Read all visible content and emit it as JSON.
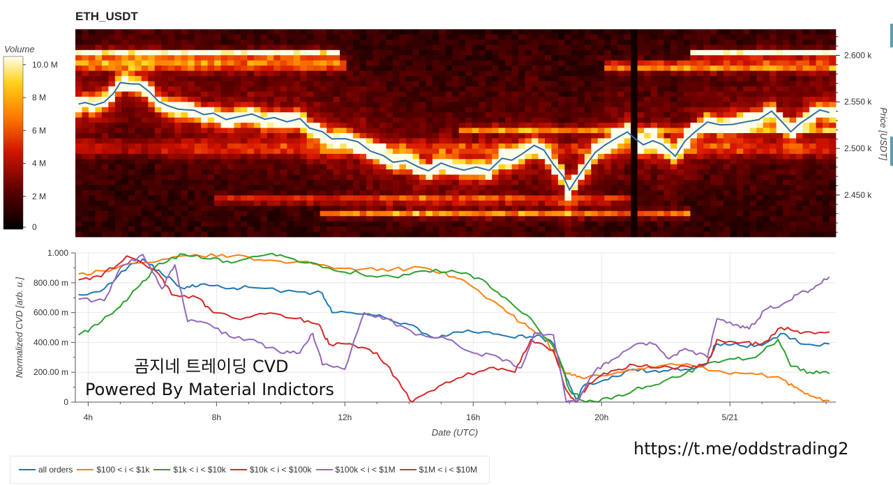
{
  "title": "ETH_USDT",
  "heatmap": {
    "colorbar_label": "Volume",
    "colorbar_ticks": [
      {
        "label": "10.0 M",
        "value": 10000000
      },
      {
        "label": "8 M",
        "value": 8000000
      },
      {
        "label": "6 M",
        "value": 6000000
      },
      {
        "label": "4 M",
        "value": 4000000
      },
      {
        "label": "2 M",
        "value": 2000000
      },
      {
        "label": "0",
        "value": 0
      }
    ],
    "ylabel": "Price [USDT]",
    "price_ticks": [
      "2.600 k",
      "2.550 k",
      "2.500 k",
      "2.450 k"
    ],
    "price_tick_values": [
      2600,
      2550,
      2500,
      2450
    ],
    "price_range": [
      2405,
      2628
    ],
    "price_line": [
      [
        3.7,
        2547
      ],
      [
        3.9,
        2549
      ],
      [
        4.2,
        2546
      ],
      [
        4.5,
        2551
      ],
      [
        4.8,
        2560
      ],
      [
        5.0,
        2572
      ],
      [
        5.3,
        2570
      ],
      [
        5.6,
        2568
      ],
      [
        5.9,
        2562
      ],
      [
        6.2,
        2549
      ],
      [
        6.5,
        2545
      ],
      [
        6.8,
        2543
      ],
      [
        7.0,
        2542
      ],
      [
        7.3,
        2540
      ],
      [
        7.6,
        2535
      ],
      [
        7.9,
        2537
      ],
      [
        8.3,
        2531
      ],
      [
        8.7,
        2534
      ],
      [
        9.1,
        2536
      ],
      [
        9.5,
        2530
      ],
      [
        9.8,
        2532
      ],
      [
        10.2,
        2529
      ],
      [
        10.6,
        2533
      ],
      [
        10.9,
        2521
      ],
      [
        11.3,
        2517
      ],
      [
        11.6,
        2509
      ],
      [
        12.0,
        2512
      ],
      [
        12.4,
        2506
      ],
      [
        12.8,
        2498
      ],
      [
        13.2,
        2492
      ],
      [
        13.5,
        2486
      ],
      [
        13.9,
        2488
      ],
      [
        14.3,
        2480
      ],
      [
        14.6,
        2475
      ],
      [
        15.0,
        2484
      ],
      [
        15.3,
        2481
      ],
      [
        15.7,
        2478
      ],
      [
        16.1,
        2479
      ],
      [
        16.5,
        2477
      ],
      [
        16.9,
        2489
      ],
      [
        17.2,
        2487
      ],
      [
        17.5,
        2494
      ],
      [
        17.9,
        2502
      ],
      [
        18.2,
        2497
      ],
      [
        18.5,
        2482
      ],
      [
        18.8,
        2470
      ],
      [
        19.0,
        2455
      ],
      [
        19.2,
        2466
      ],
      [
        19.5,
        2481
      ],
      [
        19.8,
        2496
      ],
      [
        20.1,
        2503
      ],
      [
        20.4,
        2510
      ],
      [
        20.8,
        2518
      ],
      [
        21.0,
        2512
      ],
      [
        21.3,
        2505
      ],
      [
        21.6,
        2509
      ],
      [
        21.9,
        2503
      ],
      [
        22.3,
        2492
      ],
      [
        22.6,
        2508
      ],
      [
        22.9,
        2519
      ],
      [
        23.3,
        2528
      ],
      [
        23.7,
        2524
      ],
      [
        24.1,
        2527
      ],
      [
        24.5,
        2530
      ],
      [
        24.9,
        2532
      ],
      [
        25.3,
        2541
      ],
      [
        25.6,
        2529
      ],
      [
        25.9,
        2519
      ],
      [
        26.2,
        2528
      ],
      [
        26.5,
        2535
      ],
      [
        26.8,
        2540
      ],
      [
        27.1,
        2538
      ]
    ]
  },
  "chart_data": {
    "type": "line",
    "xlabel": "Date (UTC)",
    "ylabel": "Normalized CVD [arb. u.]",
    "x_ticks": [
      "4h",
      "8h",
      "12h",
      "16h",
      "20h",
      "5/21"
    ],
    "x_tick_hours": [
      4,
      8,
      12,
      16,
      20,
      24
    ],
    "xlim": [
      3.6,
      27.3
    ],
    "ylim": [
      0,
      1000
    ],
    "y_ticks": [
      {
        "label": "0",
        "value": 0
      },
      {
        "label": "200.00 m",
        "value": 200
      },
      {
        "label": "400.00 m",
        "value": 400
      },
      {
        "label": "600.00 m",
        "value": 600
      },
      {
        "label": "800.00 m",
        "value": 800
      },
      {
        "label": "1.000",
        "value": 1000
      }
    ],
    "grid": true,
    "legend_position": "bottom-left",
    "series": [
      {
        "name": "all orders",
        "color": "#1f77b4",
        "points": [
          [
            3.7,
            720
          ],
          [
            4.5,
            760
          ],
          [
            5.3,
            920
          ],
          [
            5.7,
            960
          ],
          [
            6.3,
            860
          ],
          [
            7.0,
            760
          ],
          [
            7.5,
            790
          ],
          [
            8.3,
            760
          ],
          [
            9.0,
            770
          ],
          [
            10.5,
            740
          ],
          [
            11.3,
            730
          ],
          [
            11.6,
            600
          ],
          [
            12.5,
            590
          ],
          [
            13.2,
            570
          ],
          [
            14.0,
            520
          ],
          [
            14.8,
            430
          ],
          [
            15.5,
            470
          ],
          [
            16.5,
            470
          ],
          [
            17.3,
            430
          ],
          [
            18.0,
            450
          ],
          [
            18.5,
            390
          ],
          [
            18.9,
            160
          ],
          [
            19.2,
            20
          ],
          [
            19.5,
            120
          ],
          [
            20.2,
            150
          ],
          [
            21.0,
            220
          ],
          [
            21.8,
            200
          ],
          [
            22.6,
            220
          ],
          [
            23.3,
            260
          ],
          [
            23.6,
            390
          ],
          [
            24.3,
            380
          ],
          [
            25.0,
            380
          ],
          [
            25.7,
            460
          ],
          [
            26.2,
            390
          ],
          [
            27.1,
            390
          ]
        ]
      },
      {
        "name": "$100 < i < $1k",
        "color": "#ff7f0e",
        "points": [
          [
            3.7,
            860
          ],
          [
            4.5,
            880
          ],
          [
            5.3,
            930
          ],
          [
            6.5,
            960
          ],
          [
            7.5,
            980
          ],
          [
            8.5,
            980
          ],
          [
            9.5,
            950
          ],
          [
            10.5,
            940
          ],
          [
            11.5,
            910
          ],
          [
            12.5,
            890
          ],
          [
            13.5,
            890
          ],
          [
            14.5,
            900
          ],
          [
            15.4,
            840
          ],
          [
            16.0,
            770
          ],
          [
            16.8,
            650
          ],
          [
            17.5,
            530
          ],
          [
            18.2,
            440
          ],
          [
            18.8,
            220
          ],
          [
            19.1,
            180
          ],
          [
            19.5,
            160
          ],
          [
            20.5,
            200
          ],
          [
            21.5,
            240
          ],
          [
            22.5,
            250
          ],
          [
            23.5,
            210
          ],
          [
            24.5,
            190
          ],
          [
            25.5,
            170
          ],
          [
            26.0,
            100
          ],
          [
            26.5,
            40
          ],
          [
            27.1,
            10
          ]
        ]
      },
      {
        "name": "$1k < i < $10k",
        "color": "#2ca02c",
        "points": [
          [
            3.7,
            450
          ],
          [
            4.3,
            520
          ],
          [
            5.0,
            640
          ],
          [
            5.6,
            780
          ],
          [
            6.2,
            930
          ],
          [
            7.0,
            990
          ],
          [
            7.8,
            960
          ],
          [
            8.6,
            940
          ],
          [
            9.6,
            990
          ],
          [
            10.4,
            960
          ],
          [
            11.5,
            900
          ],
          [
            12.5,
            860
          ],
          [
            13.5,
            840
          ],
          [
            14.5,
            880
          ],
          [
            15.5,
            870
          ],
          [
            16.3,
            820
          ],
          [
            17.0,
            700
          ],
          [
            17.8,
            560
          ],
          [
            18.6,
            330
          ],
          [
            19.0,
            80
          ],
          [
            19.5,
            0
          ],
          [
            20.3,
            20
          ],
          [
            21.0,
            80
          ],
          [
            21.8,
            120
          ],
          [
            22.6,
            190
          ],
          [
            23.3,
            260
          ],
          [
            24.0,
            290
          ],
          [
            24.8,
            300
          ],
          [
            25.5,
            420
          ],
          [
            25.9,
            240
          ],
          [
            26.5,
            200
          ],
          [
            27.1,
            190
          ]
        ]
      },
      {
        "name": "$10k < i < $100k",
        "color": "#d62728",
        "points": [
          [
            3.7,
            820
          ],
          [
            4.4,
            840
          ],
          [
            5.2,
            980
          ],
          [
            6.2,
            860
          ],
          [
            6.6,
            720
          ],
          [
            7.4,
            700
          ],
          [
            7.9,
            600
          ],
          [
            8.6,
            560
          ],
          [
            9.5,
            590
          ],
          [
            10.5,
            560
          ],
          [
            11.2,
            520
          ],
          [
            11.5,
            390
          ],
          [
            12.3,
            380
          ],
          [
            13.0,
            330
          ],
          [
            13.6,
            160
          ],
          [
            14.1,
            0
          ],
          [
            14.8,
            80
          ],
          [
            15.5,
            160
          ],
          [
            16.5,
            230
          ],
          [
            17.3,
            200
          ],
          [
            17.8,
            420
          ],
          [
            18.5,
            350
          ],
          [
            18.9,
            80
          ],
          [
            19.2,
            0
          ],
          [
            19.6,
            120
          ],
          [
            20.3,
            210
          ],
          [
            21.0,
            250
          ],
          [
            21.8,
            230
          ],
          [
            22.8,
            230
          ],
          [
            23.3,
            260
          ],
          [
            23.6,
            420
          ],
          [
            24.4,
            400
          ],
          [
            25.0,
            390
          ],
          [
            25.6,
            500
          ],
          [
            26.2,
            460
          ],
          [
            27.1,
            470
          ]
        ]
      },
      {
        "name": "$100k < i < $1M",
        "color": "#9467bd",
        "points": [
          [
            3.7,
            690
          ],
          [
            4.5,
            680
          ],
          [
            5.0,
            900
          ],
          [
            5.7,
            990
          ],
          [
            6.3,
            760
          ],
          [
            6.7,
            920
          ],
          [
            7.1,
            540
          ],
          [
            7.7,
            530
          ],
          [
            8.4,
            440
          ],
          [
            9.3,
            400
          ],
          [
            10.0,
            330
          ],
          [
            10.6,
            330
          ],
          [
            11.0,
            460
          ],
          [
            11.3,
            250
          ],
          [
            12.0,
            220
          ],
          [
            12.6,
            600
          ],
          [
            13.3,
            560
          ],
          [
            14.2,
            450
          ],
          [
            15.2,
            420
          ],
          [
            16.0,
            330
          ],
          [
            16.8,
            300
          ],
          [
            17.5,
            230
          ],
          [
            17.9,
            460
          ],
          [
            18.5,
            450
          ],
          [
            18.9,
            0
          ],
          [
            19.3,
            20
          ],
          [
            19.8,
            210
          ],
          [
            20.3,
            280
          ],
          [
            21.0,
            380
          ],
          [
            21.6,
            390
          ],
          [
            22.1,
            290
          ],
          [
            22.6,
            360
          ],
          [
            23.3,
            300
          ],
          [
            23.6,
            560
          ],
          [
            24.2,
            520
          ],
          [
            24.6,
            490
          ],
          [
            25.1,
            620
          ],
          [
            25.6,
            650
          ],
          [
            26.1,
            720
          ],
          [
            26.6,
            760
          ],
          [
            27.1,
            840
          ]
        ]
      },
      {
        "name": "$1M < i < $10M",
        "color": "#8c564b",
        "points": []
      }
    ]
  },
  "watermark": {
    "line1": "곰지네 트레이딩 CVD",
    "line2": "Powered By Material Indictors"
  },
  "link": "https://t.me/oddstrading2"
}
